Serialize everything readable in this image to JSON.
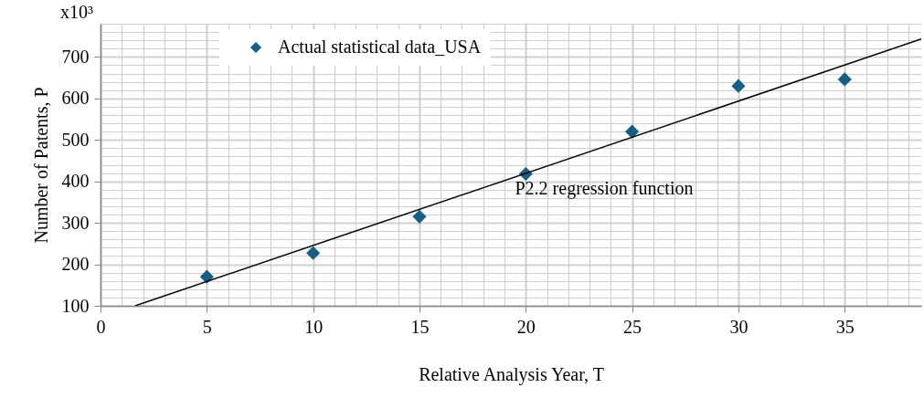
{
  "chart_data": {
    "type": "scatter",
    "xlabel": "Relative Analysis Year, T",
    "ylabel": "Number of Patents, P",
    "annotations": [
      "x10³"
    ],
    "xlim": [
      0,
      38.6
    ],
    "xticks": [
      0,
      5,
      10,
      15,
      20,
      25,
      30,
      35
    ],
    "ylim": [
      100,
      780
    ],
    "yticks": [
      100,
      200,
      300,
      400,
      500,
      600,
      700
    ],
    "grid": true,
    "legend": "top",
    "series": [
      {
        "name": "Actual statistical data_USA",
        "type": "scatter",
        "marker": "diamond",
        "color": "#175e80",
        "x": [
          5,
          10,
          15,
          20,
          25,
          30,
          35
        ],
        "values": [
          170,
          227,
          315,
          418,
          520,
          630,
          646
        ]
      },
      {
        "name": "P2.2 regression function",
        "type": "line",
        "marker": "none",
        "color": "#000000",
        "x": [
          1.63,
          38.6
        ],
        "values": [
          100,
          743
        ]
      }
    ]
  }
}
